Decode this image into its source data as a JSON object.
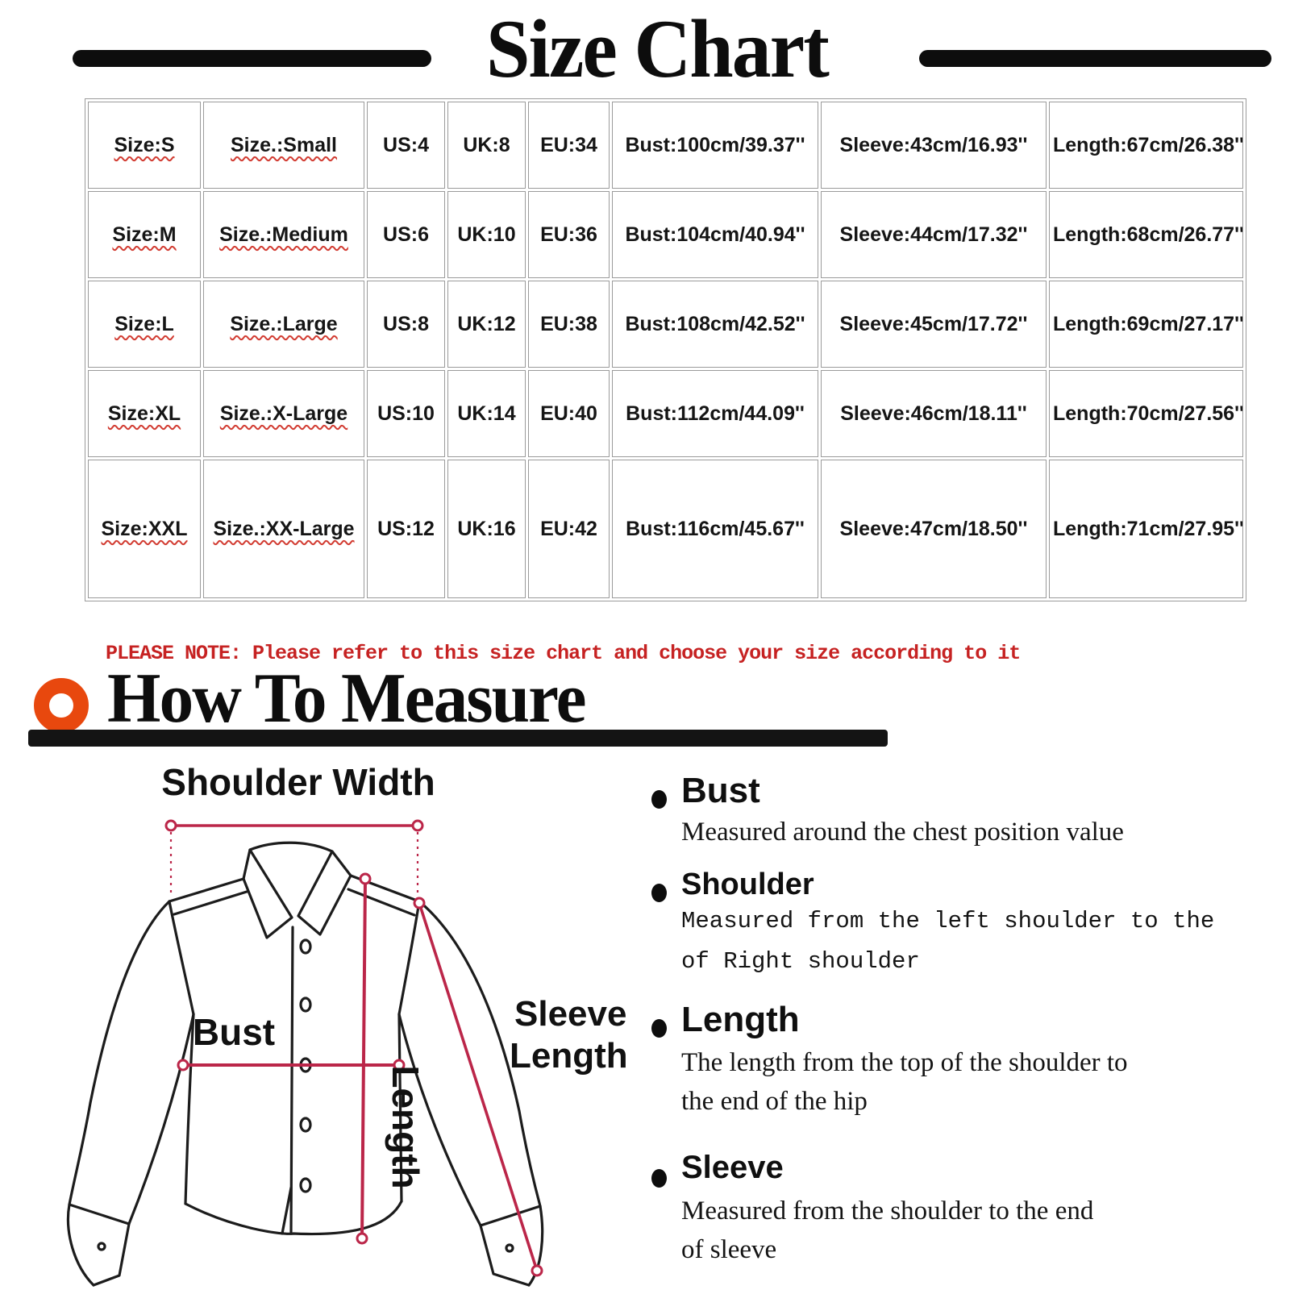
{
  "header": {
    "title": "Size Chart"
  },
  "size_table": {
    "rows": [
      [
        "Size:S",
        "Size.:Small",
        "US:4",
        "UK:8",
        "EU:34",
        "Bust:100cm/39.37''",
        "Sleeve:43cm/16.93''",
        "Length:67cm/26.38''"
      ],
      [
        "Size:M",
        "Size.:Medium",
        "US:6",
        "UK:10",
        "EU:36",
        "Bust:104cm/40.94''",
        "Sleeve:44cm/17.32''",
        "Length:68cm/26.77''"
      ],
      [
        "Size:L",
        "Size.:Large",
        "US:8",
        "UK:12",
        "EU:38",
        "Bust:108cm/42.52''",
        "Sleeve:45cm/17.72''",
        "Length:69cm/27.17''"
      ],
      [
        "Size:XL",
        "Size.:X-Large",
        "US:10",
        "UK:14",
        "EU:40",
        "Bust:112cm/44.09''",
        "Sleeve:46cm/18.11''",
        "Length:70cm/27.56''"
      ],
      [
        "Size:XXL",
        "Size.:XX-Large",
        "US:12",
        "UK:16",
        "EU:42",
        "Bust:116cm/45.67''",
        "Sleeve:47cm/18.50''",
        "Length:71cm/27.95''"
      ]
    ]
  },
  "note": "PLEASE NOTE: Please refer to this size chart and choose your size according to it",
  "how_to_measure": {
    "heading": "How To Measure"
  },
  "diagram": {
    "labels": {
      "shoulder_width": "Shoulder Width",
      "bust": "Bust",
      "length": "Length",
      "sleeve_line1": "Sleeve",
      "sleeve_line2": "Length"
    }
  },
  "measure_guide": [
    {
      "term": "Bust",
      "desc_lines": [
        "Measured around the chest position value"
      ]
    },
    {
      "term": "Shoulder",
      "desc_lines": [
        "Measured from the left shoulder to the",
        "of Right shoulder"
      ]
    },
    {
      "term": "Length",
      "desc_lines": [
        "The length from the top of the shoulder to",
        "the end of the hip"
      ]
    },
    {
      "term": "Sleeve",
      "desc_lines": [
        "Measured from the shoulder to the end",
        "of sleeve"
      ]
    }
  ],
  "colors": {
    "accent_orange": "#e8480e",
    "note_red": "#c62222",
    "squiggle_red": "#d23c32",
    "measure_line_red": "#bb2649",
    "table_border_gray": "#9b9b9b",
    "ink": "#111111"
  }
}
